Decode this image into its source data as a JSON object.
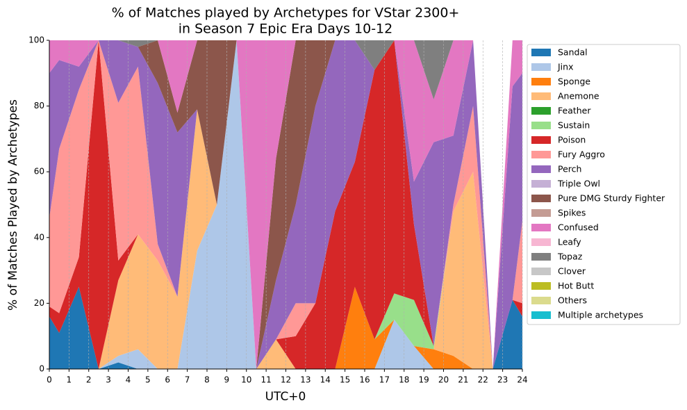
{
  "chart_data": {
    "type": "stacked_area",
    "title": [
      "% of Matches played by Archetypes for VStar 2300+",
      "in Season 7 Epic Era Days 10-12"
    ],
    "x_label": "UTC+0",
    "y_label": "% of Matches Played by Archetypes",
    "x": [
      0,
      0.5,
      1.5,
      2.5,
      3.5,
      4.5,
      5.5,
      6.5,
      7.5,
      8.5,
      9.5,
      10.5,
      11.5,
      12.5,
      13.5,
      14.5,
      15.5,
      16.5,
      17.5,
      18.5,
      19.5,
      20.5,
      21.5,
      22.5,
      23.5,
      24
    ],
    "xlim": [
      0,
      24
    ],
    "xticks": [
      0,
      1,
      2,
      3,
      4,
      5,
      6,
      7,
      8,
      9,
      10,
      11,
      12,
      13,
      14,
      15,
      16,
      17,
      18,
      19,
      20,
      21,
      22,
      23,
      24
    ],
    "ylim": [
      0,
      100
    ],
    "yticks": [
      0,
      20,
      40,
      60,
      80,
      100
    ],
    "grid": "x",
    "legend": "outside-right",
    "series": [
      {
        "name": "Sandal",
        "color": "#1f77b4",
        "values": [
          16,
          11,
          25,
          0,
          2,
          0,
          0,
          0,
          0,
          0,
          0,
          0,
          0,
          0,
          0,
          0,
          0,
          0,
          0,
          0,
          0,
          0,
          0,
          0,
          21,
          16
        ]
      },
      {
        "name": "Jinx",
        "color": "#aec7e8",
        "values": [
          0,
          0,
          0,
          0,
          2,
          6,
          0,
          0,
          36,
          50,
          100,
          0,
          0,
          0,
          0,
          0,
          0,
          0,
          15,
          7,
          0,
          0,
          0,
          0,
          0,
          0
        ]
      },
      {
        "name": "Sponge",
        "color": "#ff7f0e",
        "values": [
          0,
          0,
          0,
          0,
          0,
          0,
          0,
          0,
          0,
          0,
          0,
          0,
          0,
          0,
          0,
          0,
          25,
          9,
          0,
          0,
          6,
          4,
          0,
          0,
          0,
          0
        ]
      },
      {
        "name": "Anemone",
        "color": "#ffbb78",
        "values": [
          0,
          0,
          0,
          0,
          23,
          35,
          33,
          22,
          43,
          0,
          0,
          0,
          9,
          0,
          0,
          0,
          0,
          0,
          0,
          0,
          0,
          44,
          60,
          0,
          0,
          0
        ]
      },
      {
        "name": "Feather",
        "color": "#2ca02c",
        "values": [
          0,
          0,
          0,
          0,
          0,
          0,
          0,
          0,
          0,
          0,
          0,
          0,
          0,
          0,
          0,
          0,
          0,
          0,
          0,
          0,
          0,
          0,
          0,
          0,
          0,
          0
        ]
      },
      {
        "name": "Sustain",
        "color": "#98df8a",
        "values": [
          0,
          0,
          0,
          0,
          0,
          0,
          0,
          0,
          0,
          0,
          0,
          0,
          0,
          0,
          0,
          0,
          0,
          0,
          8,
          14,
          1,
          0,
          0,
          0,
          0,
          0
        ]
      },
      {
        "name": "Poison",
        "color": "#d62728",
        "values": [
          3,
          6,
          9,
          100,
          6,
          0,
          0,
          0,
          0,
          0,
          0,
          0,
          0,
          10,
          20,
          48,
          38,
          82,
          77,
          23,
          0,
          0,
          0,
          0,
          0,
          4
        ]
      },
      {
        "name": "Fury Aggro",
        "color": "#ff9896",
        "values": [
          27,
          50,
          51,
          0,
          48,
          51,
          5,
          0,
          0,
          0,
          0,
          0,
          0,
          10,
          0,
          0,
          0,
          0,
          0,
          0,
          0,
          2,
          20,
          0,
          0,
          25
        ]
      },
      {
        "name": "Perch",
        "color": "#9467bd",
        "values": [
          44,
          27,
          7,
          0,
          19,
          6,
          49,
          50,
          0,
          0,
          0,
          0,
          18,
          30,
          60,
          52,
          37,
          0,
          0,
          13,
          62,
          21,
          20,
          0,
          65,
          45
        ]
      },
      {
        "name": "Triple Owl",
        "color": "#c5b0d5",
        "values": [
          0,
          0,
          0,
          0,
          0,
          0,
          0,
          0,
          0,
          0,
          0,
          0,
          0,
          0,
          0,
          0,
          0,
          0,
          0,
          0,
          0,
          0,
          0,
          0,
          0,
          0
        ]
      },
      {
        "name": "Pure DMG Sturdy Fighter",
        "color": "#8c564b",
        "values": [
          0,
          0,
          0,
          0,
          0,
          0,
          13,
          6,
          21,
          50,
          0,
          0,
          37,
          50,
          20,
          0,
          0,
          0,
          0,
          0,
          0,
          0,
          0,
          0,
          0,
          0
        ]
      },
      {
        "name": "Spikes",
        "color": "#c49c94",
        "values": [
          0,
          0,
          0,
          0,
          0,
          0,
          0,
          0,
          0,
          0,
          0,
          0,
          0,
          0,
          0,
          0,
          0,
          0,
          0,
          0,
          0,
          0,
          0,
          0,
          0,
          0
        ]
      },
      {
        "name": "Confused",
        "color": "#e377c2",
        "values": [
          10,
          6,
          8,
          0,
          0,
          0,
          0,
          22,
          0,
          0,
          0,
          100,
          36,
          0,
          0,
          0,
          0,
          0,
          0,
          43,
          13,
          29,
          0,
          0,
          14,
          10
        ]
      },
      {
        "name": "Leafy",
        "color": "#f7b6d2",
        "values": [
          0,
          0,
          0,
          0,
          0,
          0,
          0,
          0,
          0,
          0,
          0,
          0,
          0,
          0,
          0,
          0,
          0,
          0,
          0,
          0,
          0,
          0,
          0,
          0,
          0,
          0
        ]
      },
      {
        "name": "Topaz",
        "color": "#7f7f7f",
        "values": [
          0,
          0,
          0,
          0,
          0,
          2,
          0,
          0,
          0,
          0,
          0,
          0,
          0,
          0,
          0,
          0,
          0,
          9,
          0,
          0,
          18,
          0,
          0,
          0,
          0,
          0
        ]
      },
      {
        "name": "Clover",
        "color": "#c7c7c7",
        "values": [
          0,
          0,
          0,
          0,
          0,
          0,
          0,
          0,
          0,
          0,
          0,
          0,
          0,
          0,
          0,
          0,
          0,
          0,
          0,
          0,
          0,
          0,
          0,
          0,
          0,
          0
        ]
      },
      {
        "name": "Hot Butt",
        "color": "#bcbd22",
        "values": [
          0,
          0,
          0,
          0,
          0,
          0,
          0,
          0,
          0,
          0,
          0,
          0,
          0,
          0,
          0,
          0,
          0,
          0,
          0,
          0,
          0,
          0,
          0,
          0,
          0,
          0
        ]
      },
      {
        "name": "Others",
        "color": "#dbdb8d",
        "values": [
          0,
          0,
          0,
          0,
          0,
          0,
          0,
          0,
          0,
          0,
          0,
          0,
          0,
          0,
          0,
          0,
          0,
          0,
          0,
          0,
          0,
          0,
          0,
          0,
          0,
          0
        ]
      },
      {
        "name": "Multiple archetypes",
        "color": "#17becf",
        "values": [
          0,
          0,
          0,
          0,
          0,
          0,
          0,
          0,
          0,
          0,
          0,
          0,
          0,
          0,
          0,
          0,
          0,
          0,
          0,
          0,
          0,
          0,
          0,
          0,
          0,
          0
        ]
      }
    ]
  }
}
